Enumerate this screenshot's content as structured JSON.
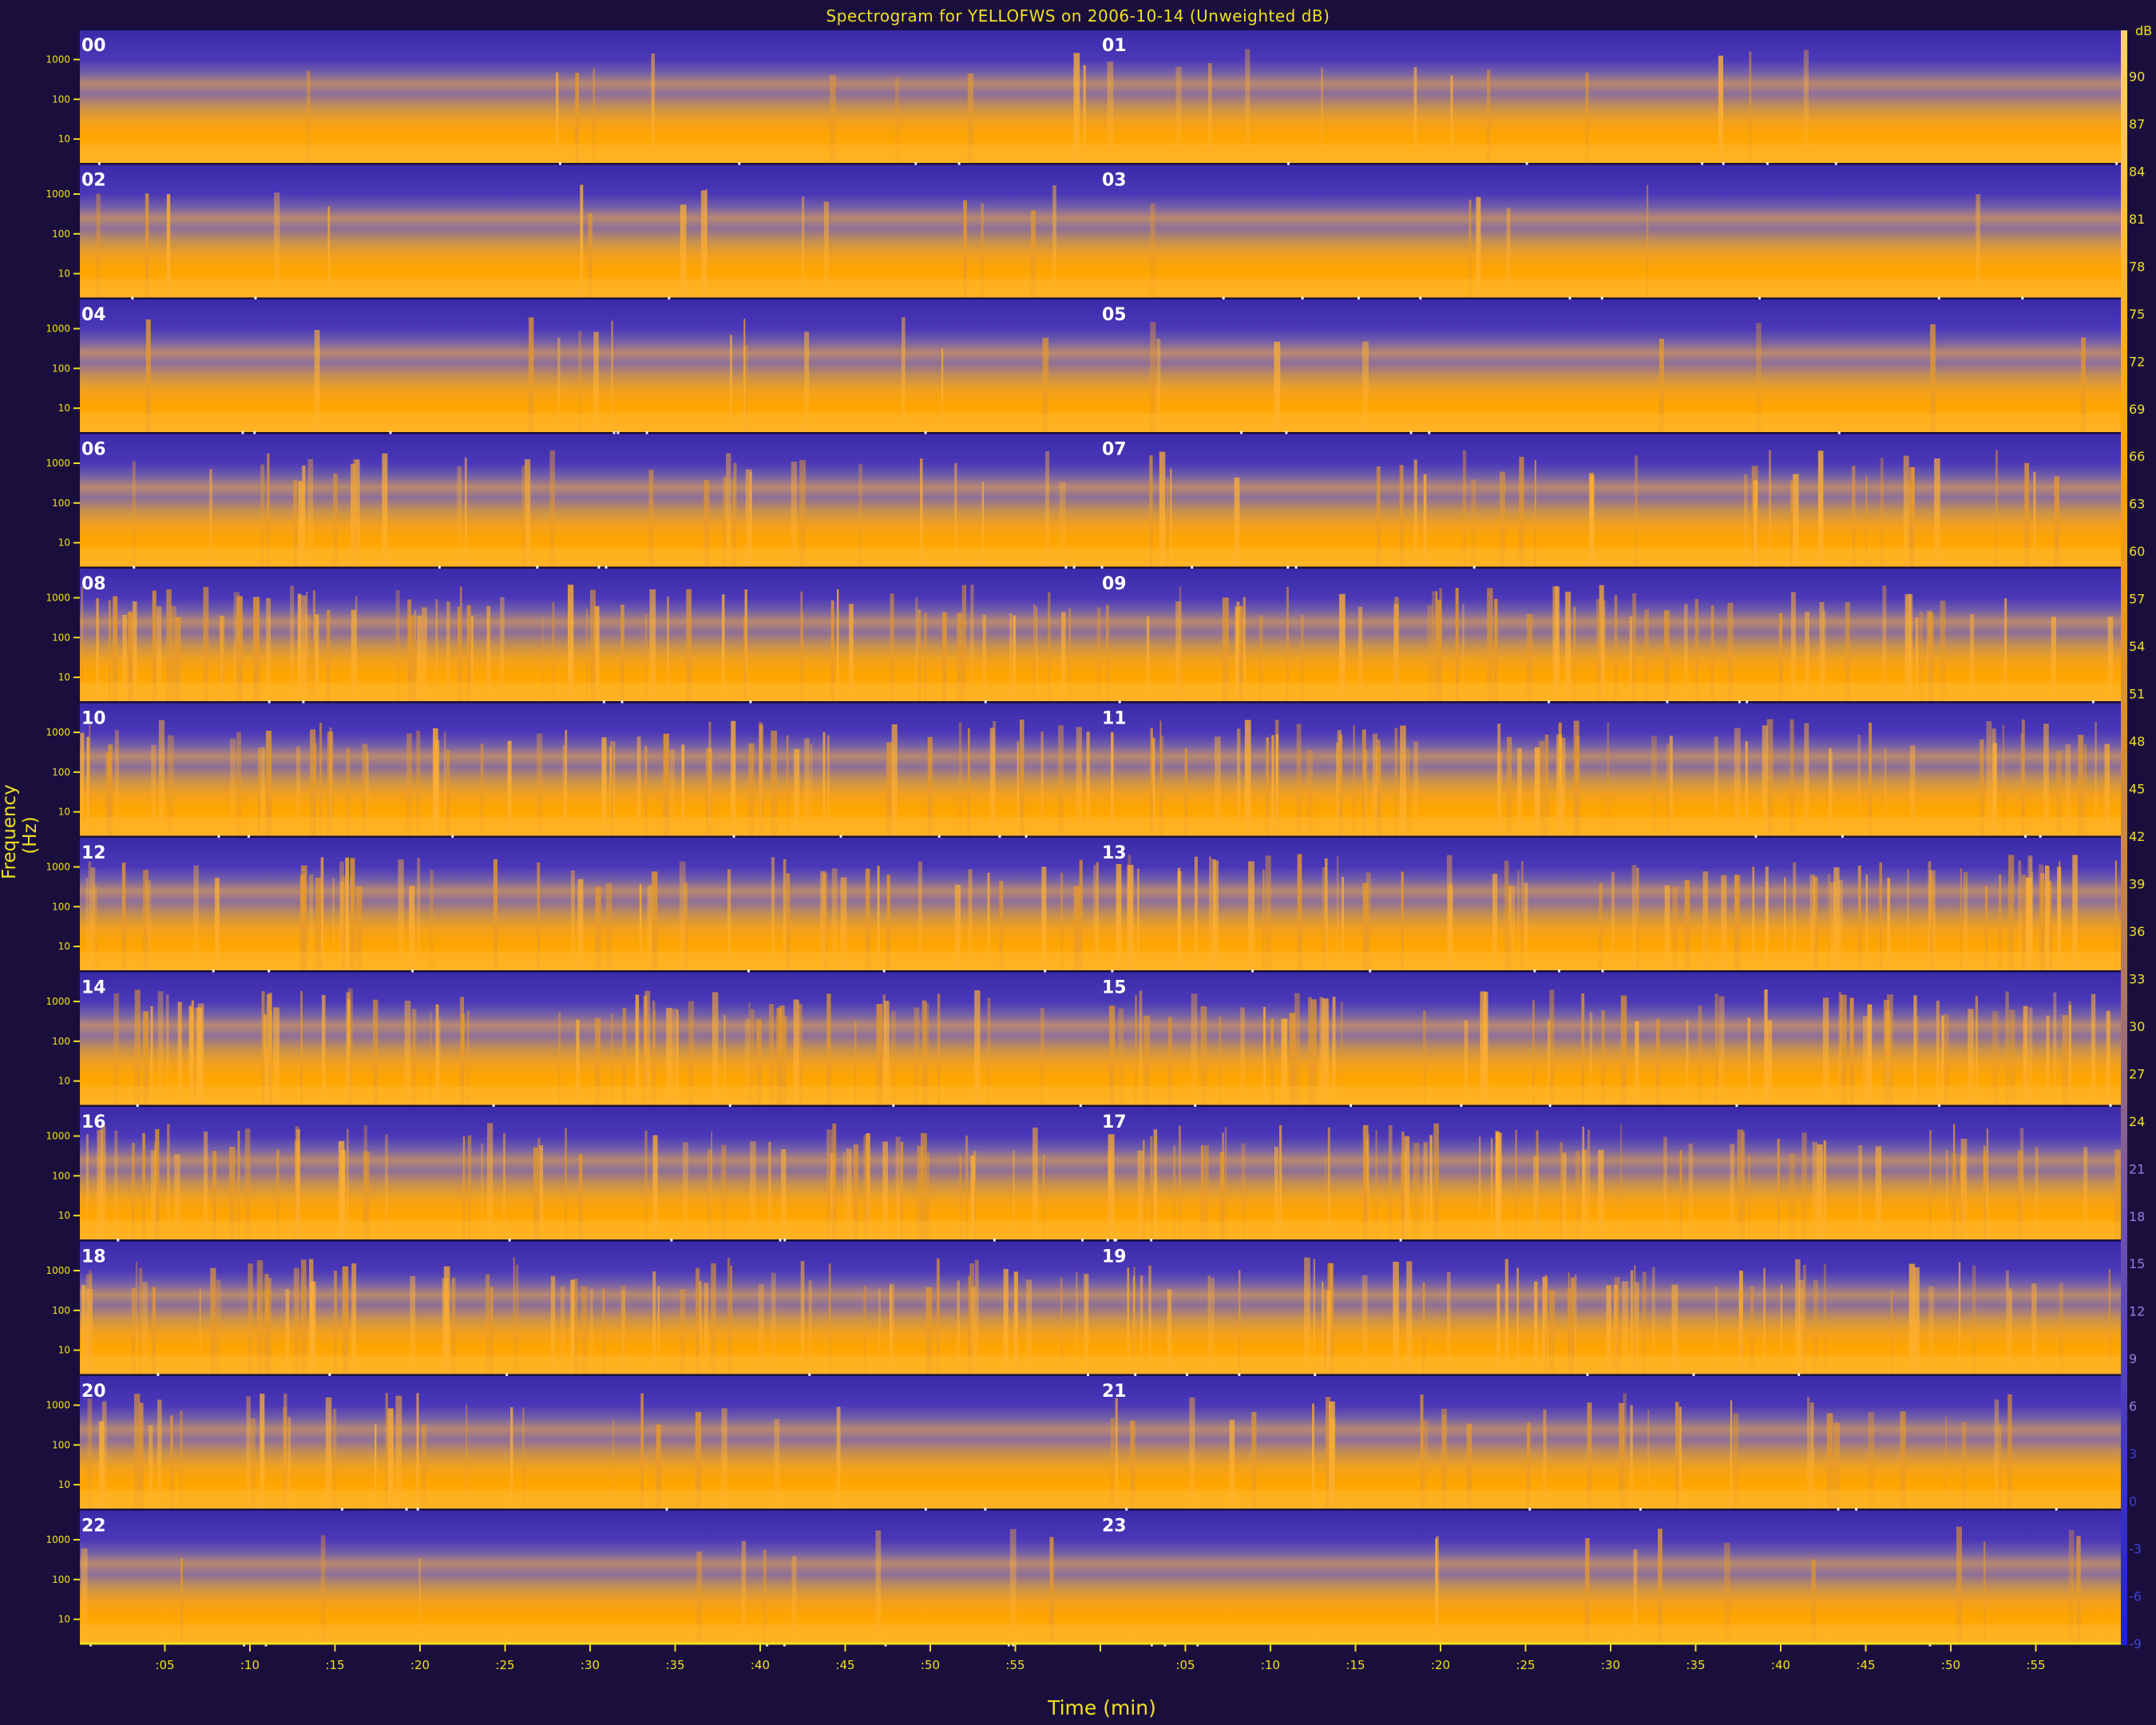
{
  "chart_data": {
    "type": "heatmap",
    "title": "Spectrogram for YELLOFWS on 2006-10-14 (Unweighted dB)",
    "xlabel": "Time (min)",
    "ylabel": "Frequency (Hz)",
    "panels": [
      "00",
      "01",
      "02",
      "03",
      "04",
      "05",
      "06",
      "07",
      "08",
      "09",
      "10",
      "11",
      "12",
      "13",
      "14",
      "15",
      "16",
      "17",
      "18",
      "19",
      "20",
      "21",
      "22",
      "23"
    ],
    "y_ticks": [
      "1000",
      "100",
      "10"
    ],
    "x_ticks": [
      ":05",
      ":10",
      ":15",
      ":20",
      ":25",
      ":30",
      ":35",
      ":40",
      ":45",
      ":50",
      ":55",
      "",
      ":05",
      ":10",
      ":15",
      ":20",
      ":25",
      ":30",
      ":35",
      ":40",
      ":45",
      ":50",
      ":55"
    ],
    "colorbar": {
      "unit": "dB",
      "ticks": [
        "90",
        "87",
        "84",
        "81",
        "78",
        "75",
        "72",
        "69",
        "66",
        "63",
        "60",
        "57",
        "54",
        "51",
        "48",
        "45",
        "42",
        "39",
        "36",
        "33",
        "30",
        "27",
        "24",
        "21",
        "18",
        "15",
        "12",
        "9",
        "6",
        "3",
        "0",
        "-3",
        "-6",
        "-9"
      ],
      "range": [
        -9,
        93
      ]
    },
    "colors": {
      "background": "#1a0f3c",
      "low": "#3a2aa8",
      "mid": "#9b6f8a",
      "high": "#ffa500",
      "peak": "#ffd070",
      "text": "#f0e020"
    }
  }
}
